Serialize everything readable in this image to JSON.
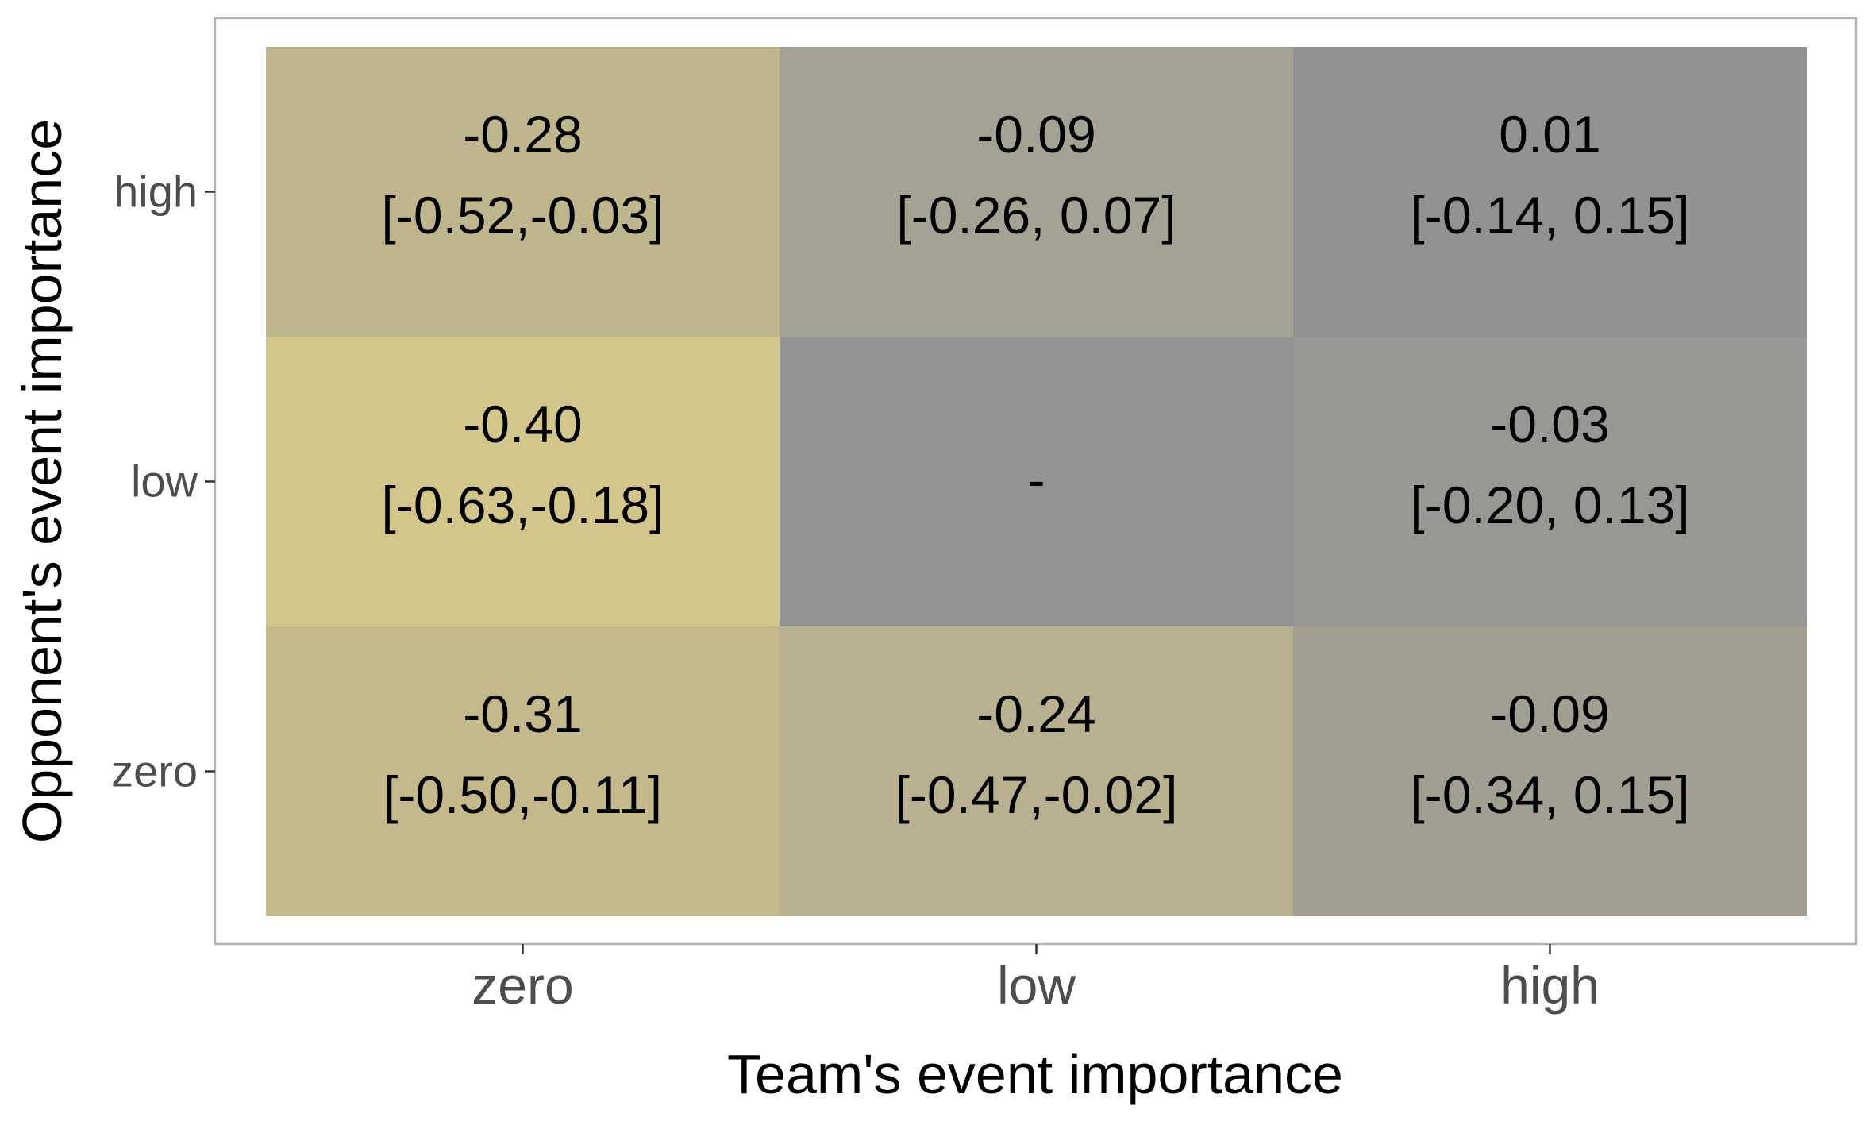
{
  "chart_data": {
    "type": "heatmap",
    "title": "",
    "xlabel": "Team's event importance",
    "ylabel": "Opponent's event importance",
    "x_categories": [
      "zero",
      "low",
      "high"
    ],
    "y_categories": [
      "high",
      "low",
      "zero"
    ],
    "cells": [
      {
        "x": "zero",
        "y": "high",
        "value": -0.28,
        "label": "-0.28",
        "ci": "[-0.52,-0.03]",
        "color": "#bfb68d"
      },
      {
        "x": "low",
        "y": "high",
        "value": -0.09,
        "label": "-0.09",
        "ci": "[-0.26, 0.07]",
        "color": "#a4a292"
      },
      {
        "x": "high",
        "y": "high",
        "value": 0.01,
        "label": "0.01",
        "ci": "[-0.14, 0.15]",
        "color": "#929292"
      },
      {
        "x": "zero",
        "y": "low",
        "value": -0.4,
        "label": "-0.40",
        "ci": "[-0.63,-0.18]",
        "color": "#d2c68a"
      },
      {
        "x": "low",
        "y": "low",
        "value": null,
        "label": "-",
        "ci": "",
        "color": "#939393"
      },
      {
        "x": "high",
        "y": "low",
        "value": -0.03,
        "label": "-0.03",
        "ci": "[-0.20, 0.13]",
        "color": "#989793"
      },
      {
        "x": "zero",
        "y": "zero",
        "value": -0.31,
        "label": "-0.31",
        "ci": "[-0.50,-0.11]",
        "color": "#c3b98b"
      },
      {
        "x": "low",
        "y": "zero",
        "value": -0.24,
        "label": "-0.24",
        "ci": "[-0.47,-0.02]",
        "color": "#b9b08f"
      },
      {
        "x": "high",
        "y": "zero",
        "value": -0.09,
        "label": "-0.09",
        "ci": "[-0.34, 0.15]",
        "color": "#a19f92"
      }
    ],
    "grid": false,
    "legend": "none"
  },
  "colors": {
    "panel_border": "#b3b3b3",
    "tick": "#333333",
    "tick_label": "#4d4d4d",
    "axis_title": "#000000",
    "cell_text": "#000000"
  }
}
